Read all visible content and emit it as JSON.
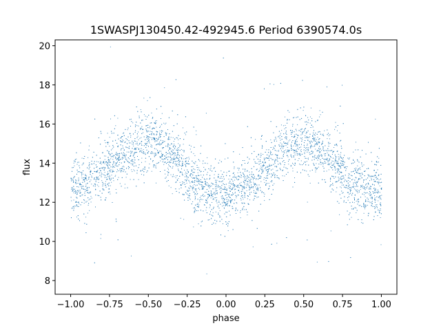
{
  "chart_data": {
    "type": "scatter",
    "title": "1SWASPJ130450.42-492945.6 Period 6390574.0s",
    "xlabel": "phase",
    "ylabel": "flux",
    "xlim": [
      -1.1,
      1.1
    ],
    "ylim": [
      7.3,
      20.3
    ],
    "xticks": [
      -1.0,
      -0.75,
      -0.5,
      -0.25,
      0.0,
      0.25,
      0.5,
      0.75,
      1.0
    ],
    "xtick_labels": [
      "−1.00",
      "−0.75",
      "−0.50",
      "−0.25",
      "0.00",
      "0.25",
      "0.50",
      "0.75",
      "1.00"
    ],
    "yticks": [
      8,
      10,
      12,
      14,
      16,
      18,
      20
    ],
    "ytick_labels": [
      "8",
      "10",
      "12",
      "14",
      "16",
      "18",
      "20"
    ],
    "grid": false,
    "marker_color": "#1f77b4",
    "trend": {
      "phase": [
        -1.0,
        -0.9,
        -0.8,
        -0.7,
        -0.6,
        -0.5,
        -0.4,
        -0.3,
        -0.2,
        -0.1,
        0.0,
        0.1,
        0.2,
        0.3,
        0.4,
        0.5,
        0.6,
        0.7,
        0.8,
        0.9,
        1.0
      ],
      "flux": [
        12.7,
        12.9,
        13.6,
        14.2,
        14.9,
        15.2,
        14.8,
        14.0,
        13.0,
        12.5,
        12.4,
        12.7,
        13.3,
        14.1,
        14.9,
        15.2,
        14.7,
        13.9,
        13.0,
        12.6,
        12.6
      ],
      "scatter_sd": 0.75
    }
  }
}
